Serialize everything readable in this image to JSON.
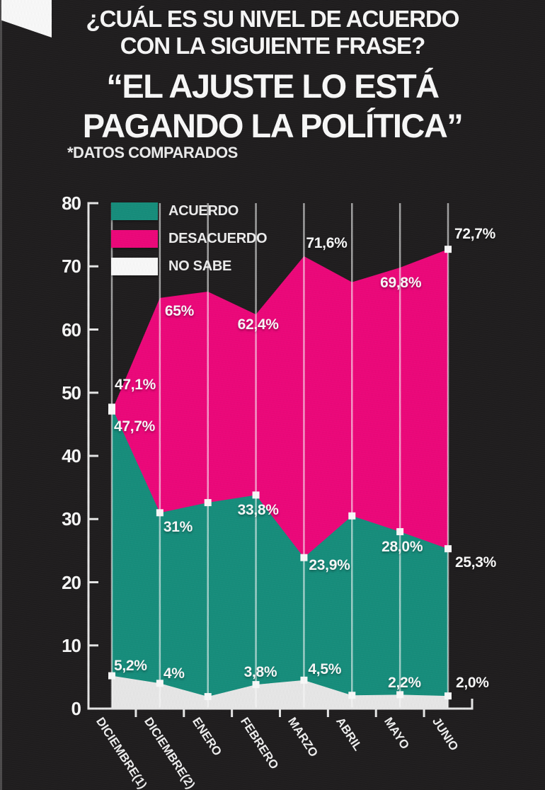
{
  "page": {
    "question_line1": "¿CUÁL ES SU NIVEL DE ACUERDO",
    "question_line2": "CON LA SIGUIENTE FRASE?",
    "quote_line1": "“EL AJUSTE LO ESTÁ",
    "quote_line2": "PAGANDO LA POLÍTICA”",
    "note": "*DATOS COMPARADOS"
  },
  "chart_data": {
    "type": "area",
    "title": "¿CUÁL ES SU NIVEL DE ACUERDO CON LA SIGUIENTE FRASE? “EL AJUSTE LO ESTÁ PAGANDO LA POLÍTICA” *DATOS COMPARADOS",
    "categories": [
      "DICIEMBRE(1)",
      "DICIEMBRE(2)",
      "ENERO",
      "FEBRERO",
      "MARZO",
      "ABRIL",
      "MAYO",
      "JUNIO"
    ],
    "ylim": [
      0,
      80
    ],
    "yticks": [
      0,
      10,
      20,
      30,
      40,
      50,
      60,
      70,
      80
    ],
    "grid": "vertical line at each category",
    "legend_position": "top-left inside plot",
    "series": [
      {
        "name": "DESACUERDO",
        "color": "#F2077D",
        "values": [
          47.1,
          65,
          66,
          62.4,
          71.6,
          67.5,
          69.8,
          72.7
        ],
        "point_labels": [
          "47,1%",
          "65%",
          null,
          "62,4%",
          "71,6%",
          null,
          "69,8%",
          "72,7%"
        ]
      },
      {
        "name": "ACUERDO",
        "color": "#17917F",
        "values": [
          47.7,
          31,
          32.6,
          33.8,
          23.9,
          30.5,
          28.0,
          25.3
        ],
        "point_labels": [
          "47,7%",
          "31%",
          null,
          "33,8%",
          "23,9%",
          null,
          "28,0%",
          "25,3%"
        ]
      },
      {
        "name": "NO SABE",
        "color": "#EDEDED",
        "values": [
          5.2,
          4,
          1.9,
          3.8,
          4.5,
          2.1,
          2.2,
          2.0
        ],
        "point_labels": [
          "5,2%",
          "4%",
          null,
          "3,8%",
          "4,5%",
          null,
          "2,2%",
          "2,0%"
        ]
      }
    ],
    "legend": [
      {
        "label": "ACUERDO",
        "color": "#17917F"
      },
      {
        "label": "DESACUERDO",
        "color": "#F2077D"
      },
      {
        "label": "NO SABE",
        "color": "#FFFFFF"
      }
    ]
  }
}
